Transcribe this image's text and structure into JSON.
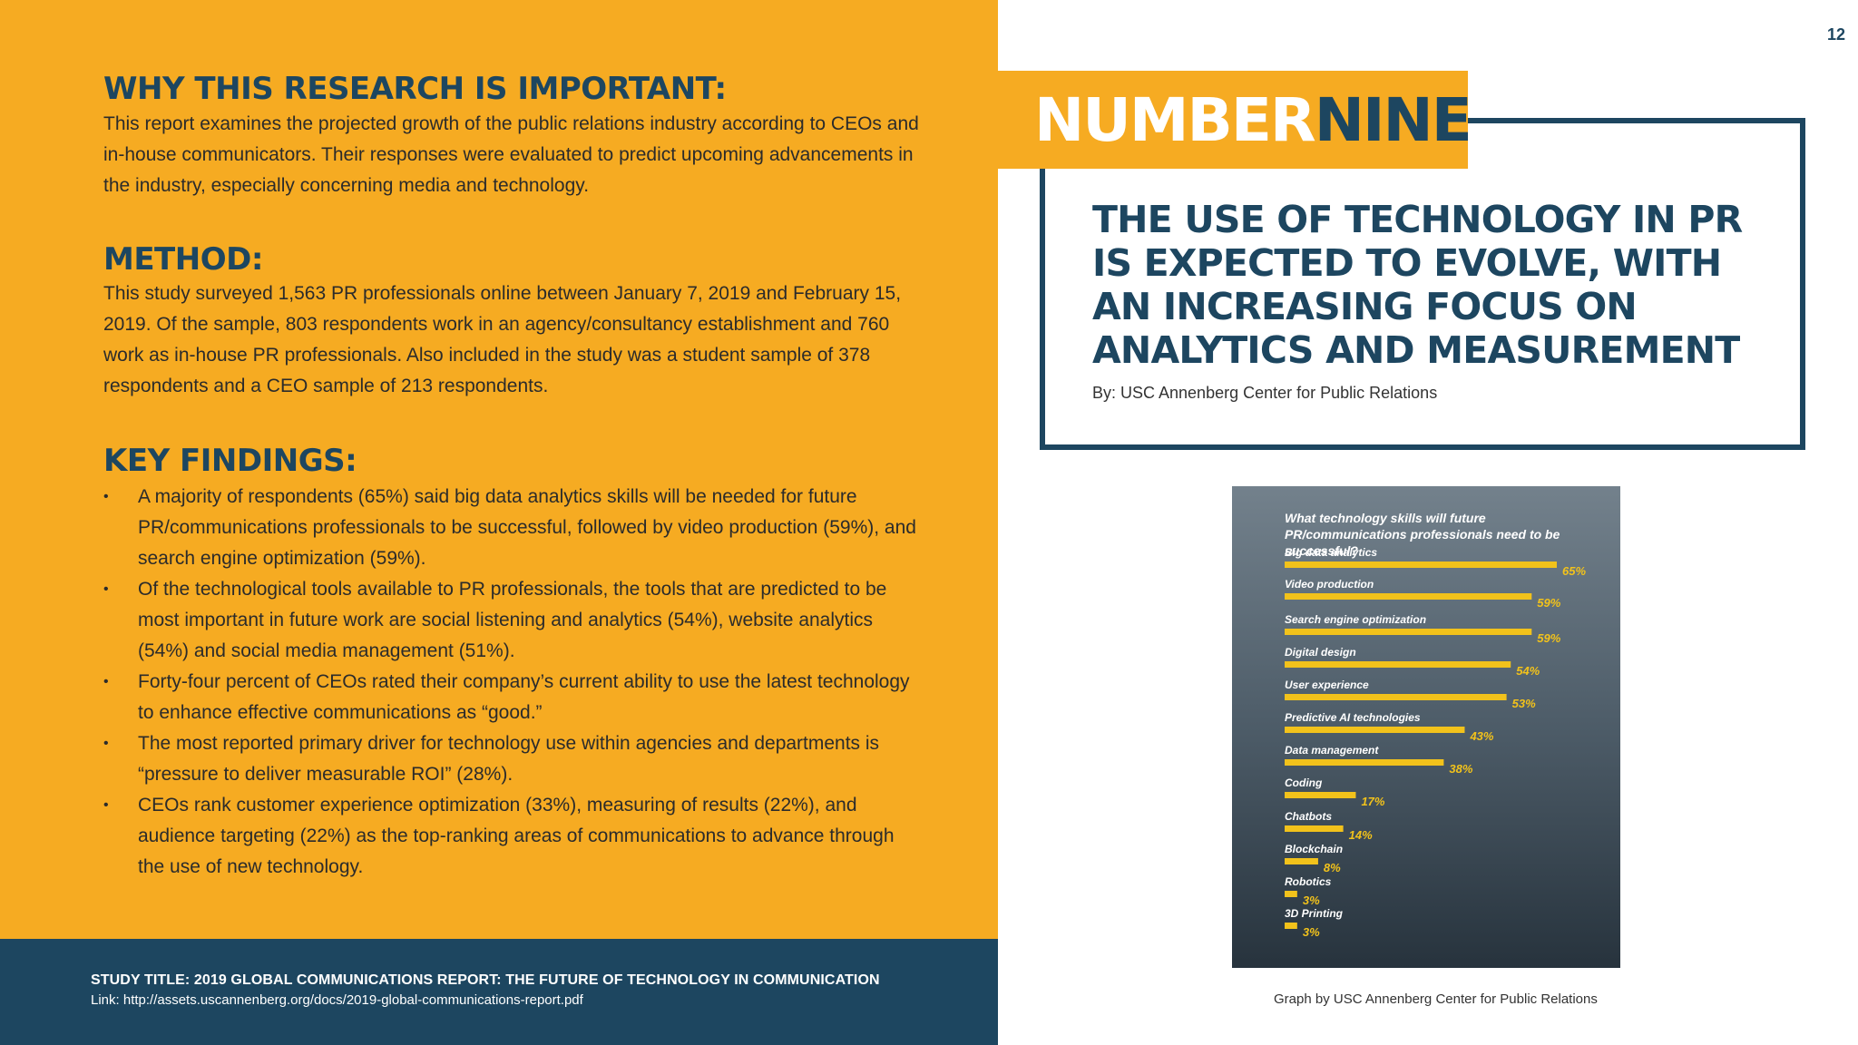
{
  "page_number": "12",
  "left": {
    "why": {
      "heading": "WHY THIS RESEARCH IS IMPORTANT:",
      "text": "This report examines the projected growth of the public relations industry according to CEOs and in-house communicators. Their responses were evaluated to predict upcoming advancements in the industry, especially concerning media and technology."
    },
    "method": {
      "heading": "METHOD:",
      "text": "This study surveyed 1,563 PR professionals online between January 7, 2019 and February 15, 2019. Of the sample, 803 respondents work in an agency/consultancy establishment and 760 work as in-house PR professionals. Also included in the study was a student sample of 378 respondents and a CEO sample of 213 respondents."
    },
    "key_findings": {
      "heading": "KEY FINDINGS:",
      "items": [
        "A majority of respondents (65%) said big data analytics skills will be needed for future PR/communications professionals to be successful, followed by video production (59%), and search engine optimization (59%).",
        "Of the technological tools available to PR professionals, the tools that are predicted to be most important in future work are social listening and analytics (54%), website analytics (54%) and social media management (51%).",
        "Forty-four percent of CEOs rated their company’s current ability to use the latest technology to enhance effective communications as “good.”",
        "The most reported primary driver for technology use within agencies and departments is “pressure to deliver measurable ROI” (28%).",
        "CEOs rank customer experience optimization (33%), measuring of results (22%), and audience targeting (22%) as the top-ranking areas of communications to advance through the use of new technology."
      ]
    },
    "footer": {
      "study_title": "STUDY TITLE: 2019 GLOBAL COMMUNICATIONS REPORT: THE FUTURE OF TECHNOLOGY IN COMMUNICATION",
      "link": "Link: http://assets.uscannenberg.org/docs/2019-global-communications-report.pdf"
    }
  },
  "right": {
    "banner": {
      "word1": "NUMBER",
      "word2": "NINE"
    },
    "headline": "THE USE OF TECHNOLOGY IN PR IS EXPECTED TO EVOLVE, WITH AN INCREASING FOCUS ON ANALYTICS AND MEASUREMENT",
    "byline": "By: USC Annenberg Center for Public Relations",
    "caption": "Graph by USC Annenberg Center for Public Relations"
  },
  "colors": {
    "orange": "#F6AB22",
    "navy": "#1D4660",
    "bar_yellow": "#F2C21B"
  },
  "chart_data": {
    "type": "bar",
    "orientation": "horizontal",
    "title": "What technology skills will future PR/communications professionals need to be successful?",
    "categories": [
      "Big data analytics",
      "Video production",
      "Search engine optimization",
      "Digital design",
      "User experience",
      "Predictive AI technologies",
      "Data management",
      "Coding",
      "Chatbots",
      "Blockchain",
      "Robotics",
      "3D Printing"
    ],
    "values": [
      65,
      59,
      59,
      54,
      53,
      43,
      38,
      17,
      14,
      8,
      3,
      3
    ],
    "value_labels": [
      "65%",
      "59%",
      "59%",
      "54%",
      "53%",
      "43%",
      "38%",
      "17%",
      "14%",
      "8%",
      "3%",
      "3%"
    ],
    "xlim": [
      0,
      65
    ]
  }
}
